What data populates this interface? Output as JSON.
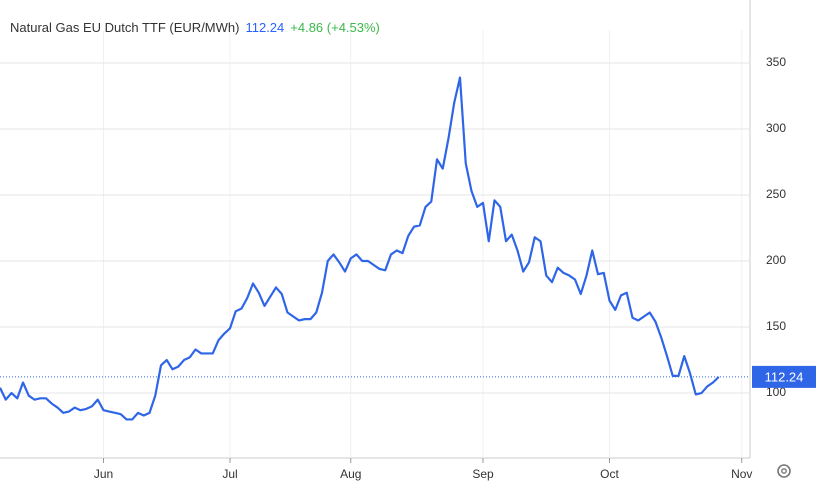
{
  "chart_data": {
    "type": "line",
    "title": "Natural Gas EU Dutch TTF (EUR/MWh)",
    "price": 112.24,
    "change": "+4.86 (+4.53%)",
    "color": "#2f66e8",
    "categories": [
      null,
      null,
      null,
      null,
      null,
      null,
      null,
      null,
      null,
      null,
      null,
      null,
      null,
      null,
      null,
      null,
      null,
      null,
      "Jun",
      null,
      null,
      null,
      null,
      null,
      null,
      null,
      null,
      null,
      null,
      null,
      null,
      null,
      null,
      null,
      null,
      null,
      null,
      null,
      null,
      null,
      "Jul",
      null,
      null,
      null,
      null,
      null,
      null,
      null,
      null,
      null,
      null,
      null,
      null,
      null,
      null,
      null,
      null,
      null,
      null,
      null,
      null,
      "Aug",
      null,
      null,
      null,
      null,
      null,
      null,
      null,
      null,
      null,
      null,
      null,
      null,
      null,
      null,
      null,
      null,
      null,
      null,
      null,
      null,
      null,
      null,
      "Sep",
      null,
      null,
      null,
      null,
      null,
      null,
      null,
      null,
      null,
      null,
      null,
      null,
      null,
      null,
      null,
      null,
      null,
      null,
      null,
      null,
      null,
      "Oct",
      null,
      null,
      null,
      null,
      null,
      null,
      null,
      null,
      null,
      null,
      null,
      null,
      null,
      null,
      null,
      null,
      null,
      null,
      null,
      null,
      null,
      null,
      "Nov"
    ],
    "values": [
      104,
      95,
      100,
      96,
      108,
      98,
      95,
      96,
      96,
      92,
      89,
      85,
      86,
      89,
      87,
      88,
      90,
      95,
      87,
      86,
      85,
      84,
      80,
      80,
      85,
      83,
      85,
      98,
      121,
      125,
      118,
      120,
      125,
      127,
      133,
      130,
      130,
      130,
      140,
      145,
      149,
      162,
      164,
      172,
      183,
      176,
      166,
      173,
      180,
      175,
      161,
      158,
      155,
      156,
      156,
      161,
      176,
      200,
      205,
      199,
      192,
      202,
      205,
      200,
      200,
      197,
      194,
      193,
      205,
      208,
      206,
      219,
      226,
      227,
      241,
      245,
      277,
      270,
      293,
      320,
      339,
      274,
      253,
      241,
      244,
      215,
      246,
      241,
      215,
      220,
      208,
      192,
      199,
      218,
      215,
      189,
      184,
      195,
      191,
      189,
      186,
      175,
      189,
      208,
      190,
      191,
      170,
      163,
      174,
      176,
      157,
      155,
      158,
      161,
      154,
      142,
      128,
      113,
      113,
      128,
      115,
      99,
      100,
      105,
      108,
      112.24,
      null,
      null,
      null,
      null
    ],
    "ylim": [
      50.8,
      375
    ],
    "yticks": [
      100,
      150,
      200,
      250,
      300,
      350
    ],
    "grid": true
  }
}
